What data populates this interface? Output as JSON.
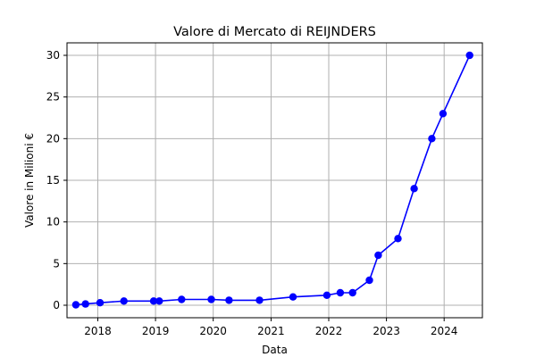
{
  "chart_data": {
    "type": "line",
    "title": "Valore di Mercato di REIJNDERS",
    "xlabel": "Data",
    "ylabel": "Valore in Milioni €",
    "xlim": [
      "2017-06-20",
      "2024-08-30"
    ],
    "ylim": [
      -1.5,
      31.5
    ],
    "xticks": [
      "2018",
      "2019",
      "2020",
      "2021",
      "2022",
      "2023",
      "2024"
    ],
    "yticks": [
      0,
      5,
      10,
      15,
      20,
      25,
      30
    ],
    "grid": true,
    "legend": "none",
    "colors": {
      "line": "#0000ff",
      "marker": "#0000ff",
      "grid": "#b0b0b0",
      "axes": "#000000"
    },
    "series": [
      {
        "x": [
          "2017-08-15",
          "2017-10-15",
          "2018-01-15",
          "2018-06-15",
          "2018-12-20",
          "2019-01-25",
          "2019-06-15",
          "2019-12-20",
          "2020-04-10",
          "2020-10-20",
          "2021-05-20",
          "2021-12-20",
          "2022-03-15",
          "2022-06-01",
          "2022-09-15",
          "2022-11-10",
          "2023-03-15",
          "2023-06-25",
          "2023-10-15",
          "2023-12-25",
          "2024-06-10"
        ],
        "values": [
          0.05,
          0.15,
          0.3,
          0.5,
          0.5,
          0.5,
          0.7,
          0.7,
          0.6,
          0.6,
          1.0,
          1.2,
          1.5,
          1.5,
          3.0,
          6.0,
          8.0,
          14.0,
          20.0,
          23.0,
          30.0
        ]
      }
    ]
  }
}
